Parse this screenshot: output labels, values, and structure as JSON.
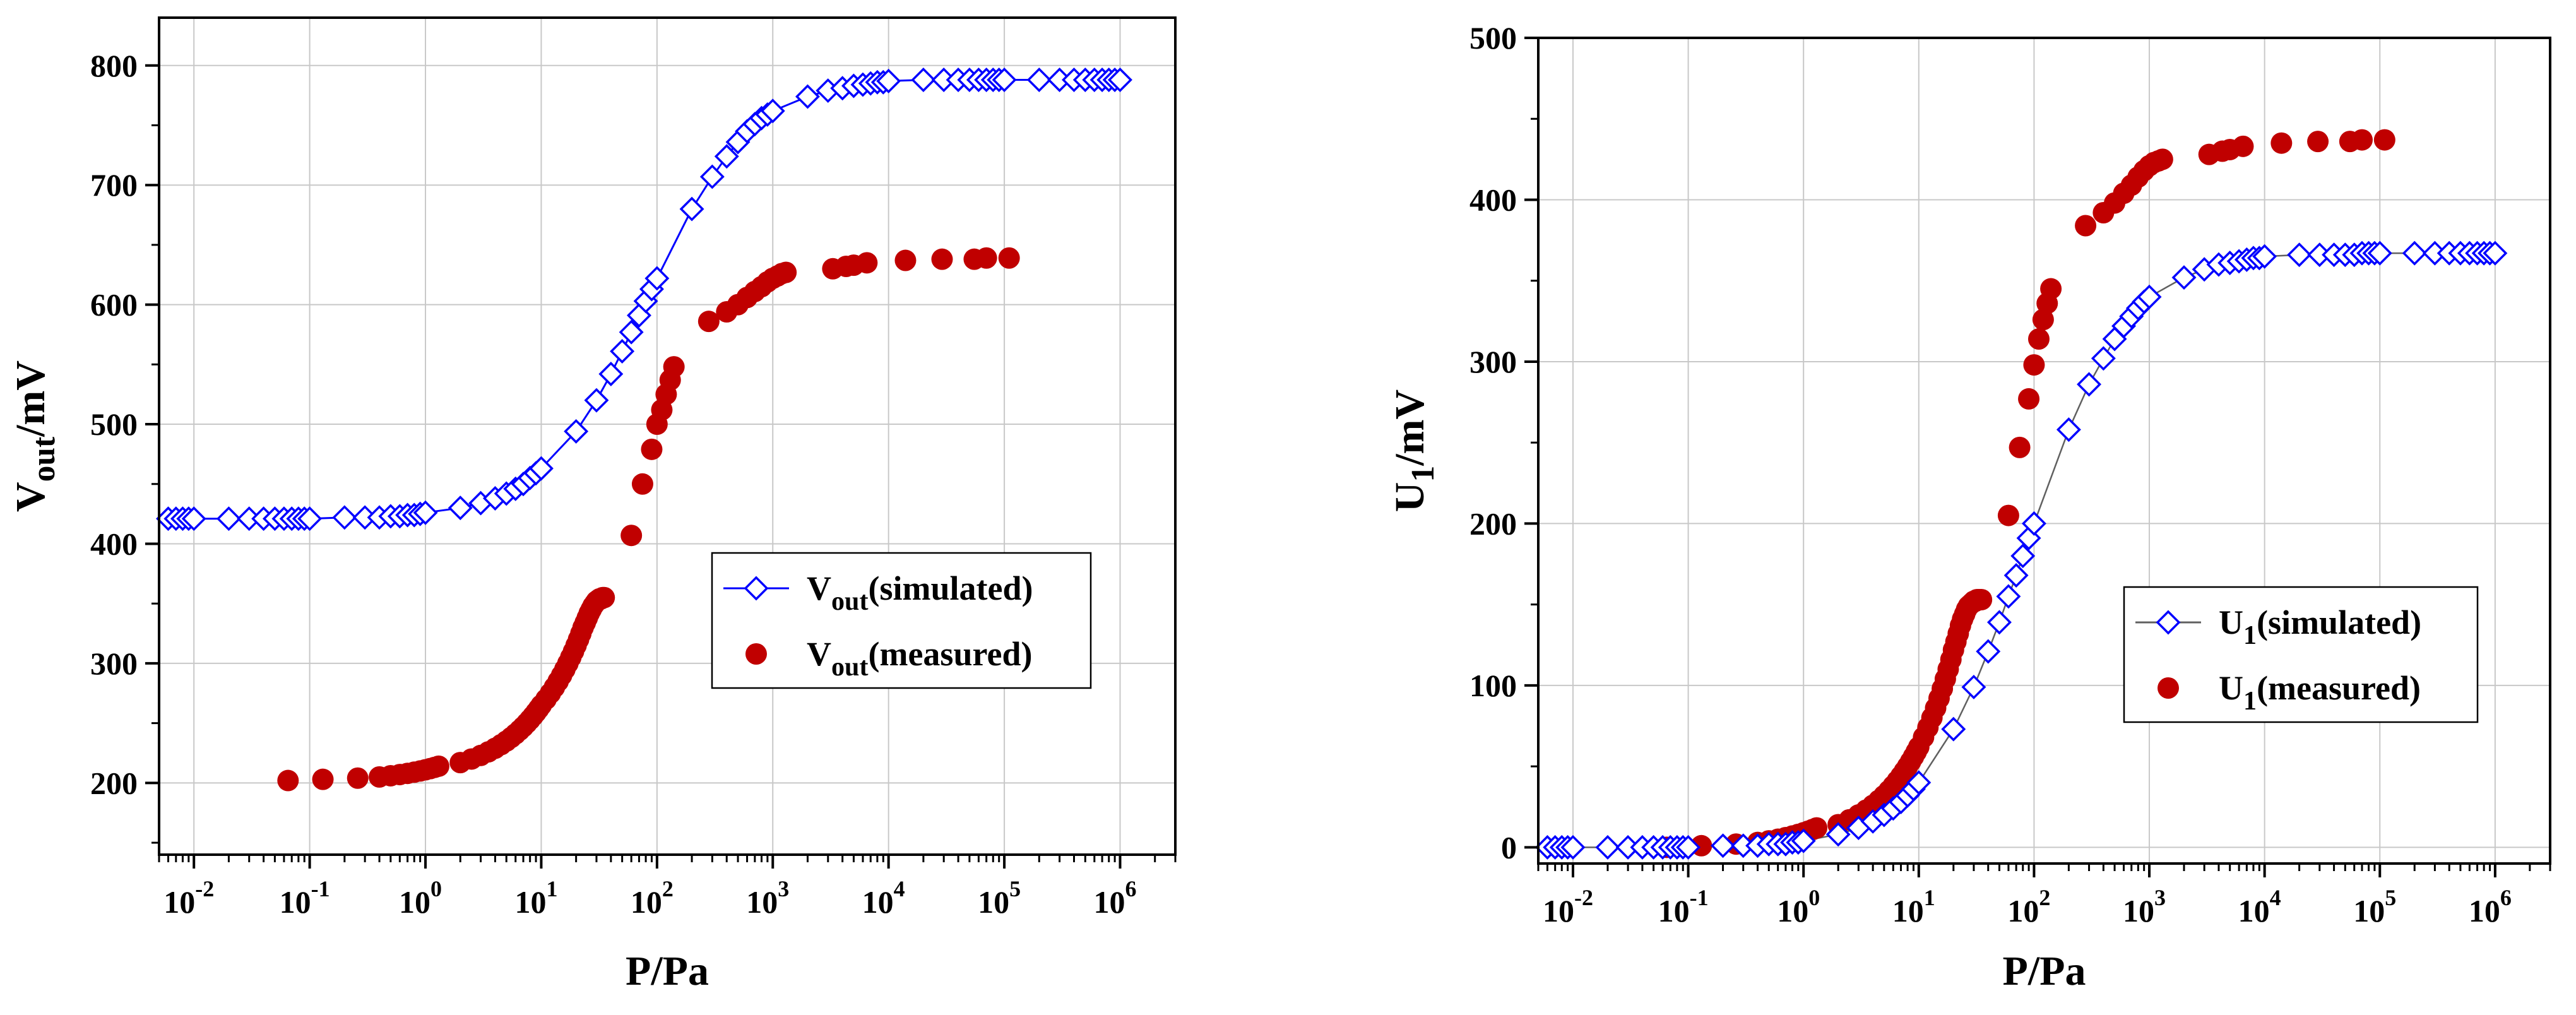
{
  "colors": {
    "simulated": "#0000ff",
    "measured": "#c00000",
    "grid": "#c8c8c8",
    "axis": "#000000"
  },
  "chart_data": [
    {
      "type": "scatter",
      "xscale": "log",
      "xlim": [
        0.005,
        3000000
      ],
      "ylim": [
        140,
        840
      ],
      "xlabel": "P/Pa",
      "ylabel_main": "V",
      "ylabel_sub": "out",
      "ylabel_unit": "/mV",
      "x_ticks": [
        {
          "value": 0.01,
          "exp": "-2"
        },
        {
          "value": 0.1,
          "exp": "-1"
        },
        {
          "value": 1,
          "exp": "0"
        },
        {
          "value": 10,
          "exp": "1"
        },
        {
          "value": 100,
          "exp": "2"
        },
        {
          "value": 1000,
          "exp": "3"
        },
        {
          "value": 10000,
          "exp": "4"
        },
        {
          "value": 100000,
          "exp": "5"
        },
        {
          "value": 1000000,
          "exp": "6"
        }
      ],
      "tick_base": "10",
      "y_ticks": [
        200,
        300,
        400,
        500,
        600,
        700,
        800
      ],
      "grid": true,
      "legend": [
        {
          "main": "V",
          "sub": "out",
          "suffix": "(simulated)",
          "series": "simulated"
        },
        {
          "main": "V",
          "sub": "out",
          "suffix": "(measured)",
          "series": "measured"
        }
      ],
      "legend_position": "center-right",
      "series": [
        {
          "name": "simulated",
          "marker": "diamond-open",
          "line": true,
          "x": [
            0.006,
            0.007,
            0.008,
            0.009,
            0.01,
            0.02,
            0.03,
            0.04,
            0.05,
            0.06,
            0.07,
            0.08,
            0.09,
            0.1,
            0.2,
            0.3,
            0.4,
            0.5,
            0.6,
            0.7,
            0.8,
            0.9,
            1,
            2,
            3,
            4,
            5,
            6,
            7,
            8,
            9,
            10,
            20,
            30,
            40,
            50,
            60,
            70,
            80,
            90,
            100,
            200,
            300,
            400,
            500,
            600,
            700,
            800,
            900,
            1000,
            2000,
            3000,
            4000,
            5000,
            6000,
            7000,
            8000,
            9000,
            10000,
            20000,
            30000,
            40000,
            50000,
            60000,
            70000,
            80000,
            90000,
            100000,
            200000,
            300000,
            400000,
            500000,
            600000,
            700000,
            800000,
            900000,
            1000000
          ],
          "y": [
            421,
            421,
            421,
            421,
            421,
            421,
            421,
            421,
            421,
            421,
            421,
            421,
            421,
            421,
            422,
            422,
            422,
            423,
            423,
            424,
            424,
            425,
            426,
            430,
            434,
            438,
            442,
            446,
            450,
            455,
            459,
            463,
            494,
            520,
            542,
            561,
            577,
            591,
            603,
            613,
            622,
            680,
            707,
            724,
            736,
            745,
            751,
            756,
            759,
            762,
            774,
            779,
            781,
            783,
            784,
            785,
            786,
            786,
            787,
            788,
            788,
            788,
            788,
            788,
            788,
            788,
            788,
            788,
            788,
            788,
            788,
            788,
            788,
            788,
            788,
            788,
            788
          ]
        },
        {
          "name": "measured",
          "marker": "circle-filled",
          "line": false,
          "x": [
            0.065,
            0.13,
            0.26,
            0.4,
            0.5,
            0.6,
            0.7,
            0.8,
            0.9,
            1.0,
            1.1,
            1.2,
            1.3,
            2,
            2.5,
            3,
            3.5,
            4,
            4.5,
            5,
            5.5,
            6,
            6.5,
            7,
            7.5,
            8,
            8.5,
            9,
            9.5,
            10,
            11,
            12,
            13,
            14,
            15,
            16,
            17,
            18,
            19,
            20,
            21,
            22,
            23,
            24,
            25,
            26,
            27,
            28,
            29,
            30,
            31,
            32,
            33,
            34,
            35,
            60,
            75,
            90,
            100,
            110,
            120,
            130,
            140,
            280,
            400,
            500,
            600,
            700,
            800,
            900,
            1000,
            1100,
            1200,
            1300,
            3300,
            4300,
            5000,
            6500,
            14000,
            29000,
            55000,
            70000,
            110000
          ],
          "y": [
            202,
            203,
            204,
            205,
            206,
            207,
            208,
            209,
            210,
            211,
            212,
            213,
            214,
            217,
            220,
            223,
            226,
            229,
            232,
            235,
            238,
            241,
            244,
            247,
            250,
            253,
            256,
            259,
            262,
            265,
            270,
            275,
            280,
            285,
            290,
            295,
            300,
            305,
            310,
            315,
            320,
            325,
            330,
            334,
            338,
            342,
            345,
            348,
            350,
            352,
            353,
            354,
            354,
            355,
            355,
            407,
            450,
            479,
            500,
            512,
            525,
            537,
            548,
            586,
            594,
            600,
            606,
            611,
            615,
            619,
            622,
            624,
            626,
            627,
            630,
            632,
            633,
            635,
            637,
            638,
            638,
            639,
            639
          ]
        }
      ]
    },
    {
      "type": "scatter",
      "xscale": "log",
      "xlim": [
        0.005,
        3000000
      ],
      "ylim": [
        -10,
        500
      ],
      "xlabel": "P/Pa",
      "ylabel_main": "U",
      "ylabel_sub": "1",
      "ylabel_unit": "/mV",
      "x_ticks": [
        {
          "value": 0.01,
          "exp": "-2"
        },
        {
          "value": 0.1,
          "exp": "-1"
        },
        {
          "value": 1,
          "exp": "0"
        },
        {
          "value": 10,
          "exp": "1"
        },
        {
          "value": 100,
          "exp": "2"
        },
        {
          "value": 1000,
          "exp": "3"
        },
        {
          "value": 10000,
          "exp": "4"
        },
        {
          "value": 100000,
          "exp": "5"
        },
        {
          "value": 1000000,
          "exp": "6"
        }
      ],
      "tick_base": "10",
      "y_ticks": [
        0,
        100,
        200,
        300,
        400,
        500
      ],
      "grid": true,
      "legend": [
        {
          "main": "U",
          "sub": "1",
          "suffix": "(simulated)",
          "series": "simulated"
        },
        {
          "main": "U",
          "sub": "1",
          "suffix": "(measured)",
          "series": "measured"
        }
      ],
      "legend_position": "center-right",
      "series": [
        {
          "name": "simulated",
          "marker": "diamond-open",
          "line": true,
          "x": [
            0.006,
            0.007,
            0.008,
            0.009,
            0.01,
            0.02,
            0.03,
            0.04,
            0.05,
            0.06,
            0.07,
            0.08,
            0.09,
            0.1,
            0.2,
            0.3,
            0.4,
            0.5,
            0.6,
            0.7,
            0.8,
            0.9,
            1,
            2,
            3,
            4,
            5,
            6,
            7,
            8,
            9,
            10,
            20,
            30,
            40,
            50,
            60,
            70,
            80,
            90,
            100,
            200,
            300,
            400,
            500,
            600,
            700,
            800,
            900,
            1000,
            2000,
            3000,
            4000,
            5000,
            6000,
            7000,
            8000,
            9000,
            10000,
            20000,
            30000,
            40000,
            50000,
            60000,
            70000,
            80000,
            90000,
            100000,
            200000,
            300000,
            400000,
            500000,
            600000,
            700000,
            800000,
            900000,
            1000000
          ],
          "y": [
            0,
            0,
            0,
            0,
            0,
            0,
            0,
            0,
            0,
            0,
            0,
            0,
            0,
            0,
            1,
            1,
            1,
            2,
            2,
            2,
            3,
            3,
            4,
            8,
            12,
            16,
            20,
            24,
            28,
            32,
            36,
            40,
            73,
            99,
            121,
            139,
            155,
            168,
            180,
            191,
            200,
            258,
            286,
            302,
            314,
            322,
            328,
            333,
            337,
            340,
            352,
            357,
            360,
            361,
            362,
            363,
            364,
            364,
            365,
            366,
            366,
            366,
            366,
            366,
            367,
            367,
            367,
            367,
            367,
            367,
            367,
            367,
            367,
            367,
            367,
            367,
            367
          ]
        },
        {
          "name": "measured",
          "marker": "circle-filled",
          "line": false,
          "x": [
            0.065,
            0.13,
            0.26,
            0.4,
            0.5,
            0.6,
            0.7,
            0.8,
            0.9,
            1.0,
            1.1,
            1.2,
            1.3,
            2,
            2.5,
            3,
            3.5,
            4,
            4.5,
            5,
            5.5,
            6,
            6.5,
            7,
            7.5,
            8,
            8.5,
            9,
            9.5,
            10,
            11,
            12,
            13,
            14,
            15,
            16,
            17,
            18,
            19,
            20,
            21,
            22,
            23,
            24,
            25,
            26,
            27,
            28,
            29,
            30,
            31,
            32,
            33,
            34,
            35,
            60,
            75,
            90,
            100,
            110,
            120,
            130,
            140,
            280,
            400,
            500,
            600,
            700,
            800,
            900,
            1000,
            1100,
            1200,
            1300,
            3300,
            4300,
            5000,
            6500,
            14000,
            29000,
            55000,
            70000,
            110000
          ],
          "y": [
            0,
            1,
            2,
            3,
            4,
            5,
            6,
            7,
            8,
            9,
            10,
            11,
            12,
            14,
            17,
            20,
            23,
            26,
            29,
            32,
            35,
            38,
            41,
            44,
            47,
            50,
            53,
            56,
            59,
            62,
            68,
            74,
            80,
            86,
            92,
            98,
            104,
            110,
            116,
            122,
            127,
            132,
            137,
            141,
            144,
            147,
            149,
            150,
            151,
            152,
            152,
            153,
            153,
            153,
            153,
            205,
            247,
            277,
            298,
            314,
            326,
            336,
            345,
            384,
            392,
            398,
            404,
            409,
            414,
            418,
            421,
            423,
            424,
            425,
            428,
            430,
            431,
            433,
            435,
            436,
            436,
            437,
            437
          ]
        }
      ]
    }
  ]
}
